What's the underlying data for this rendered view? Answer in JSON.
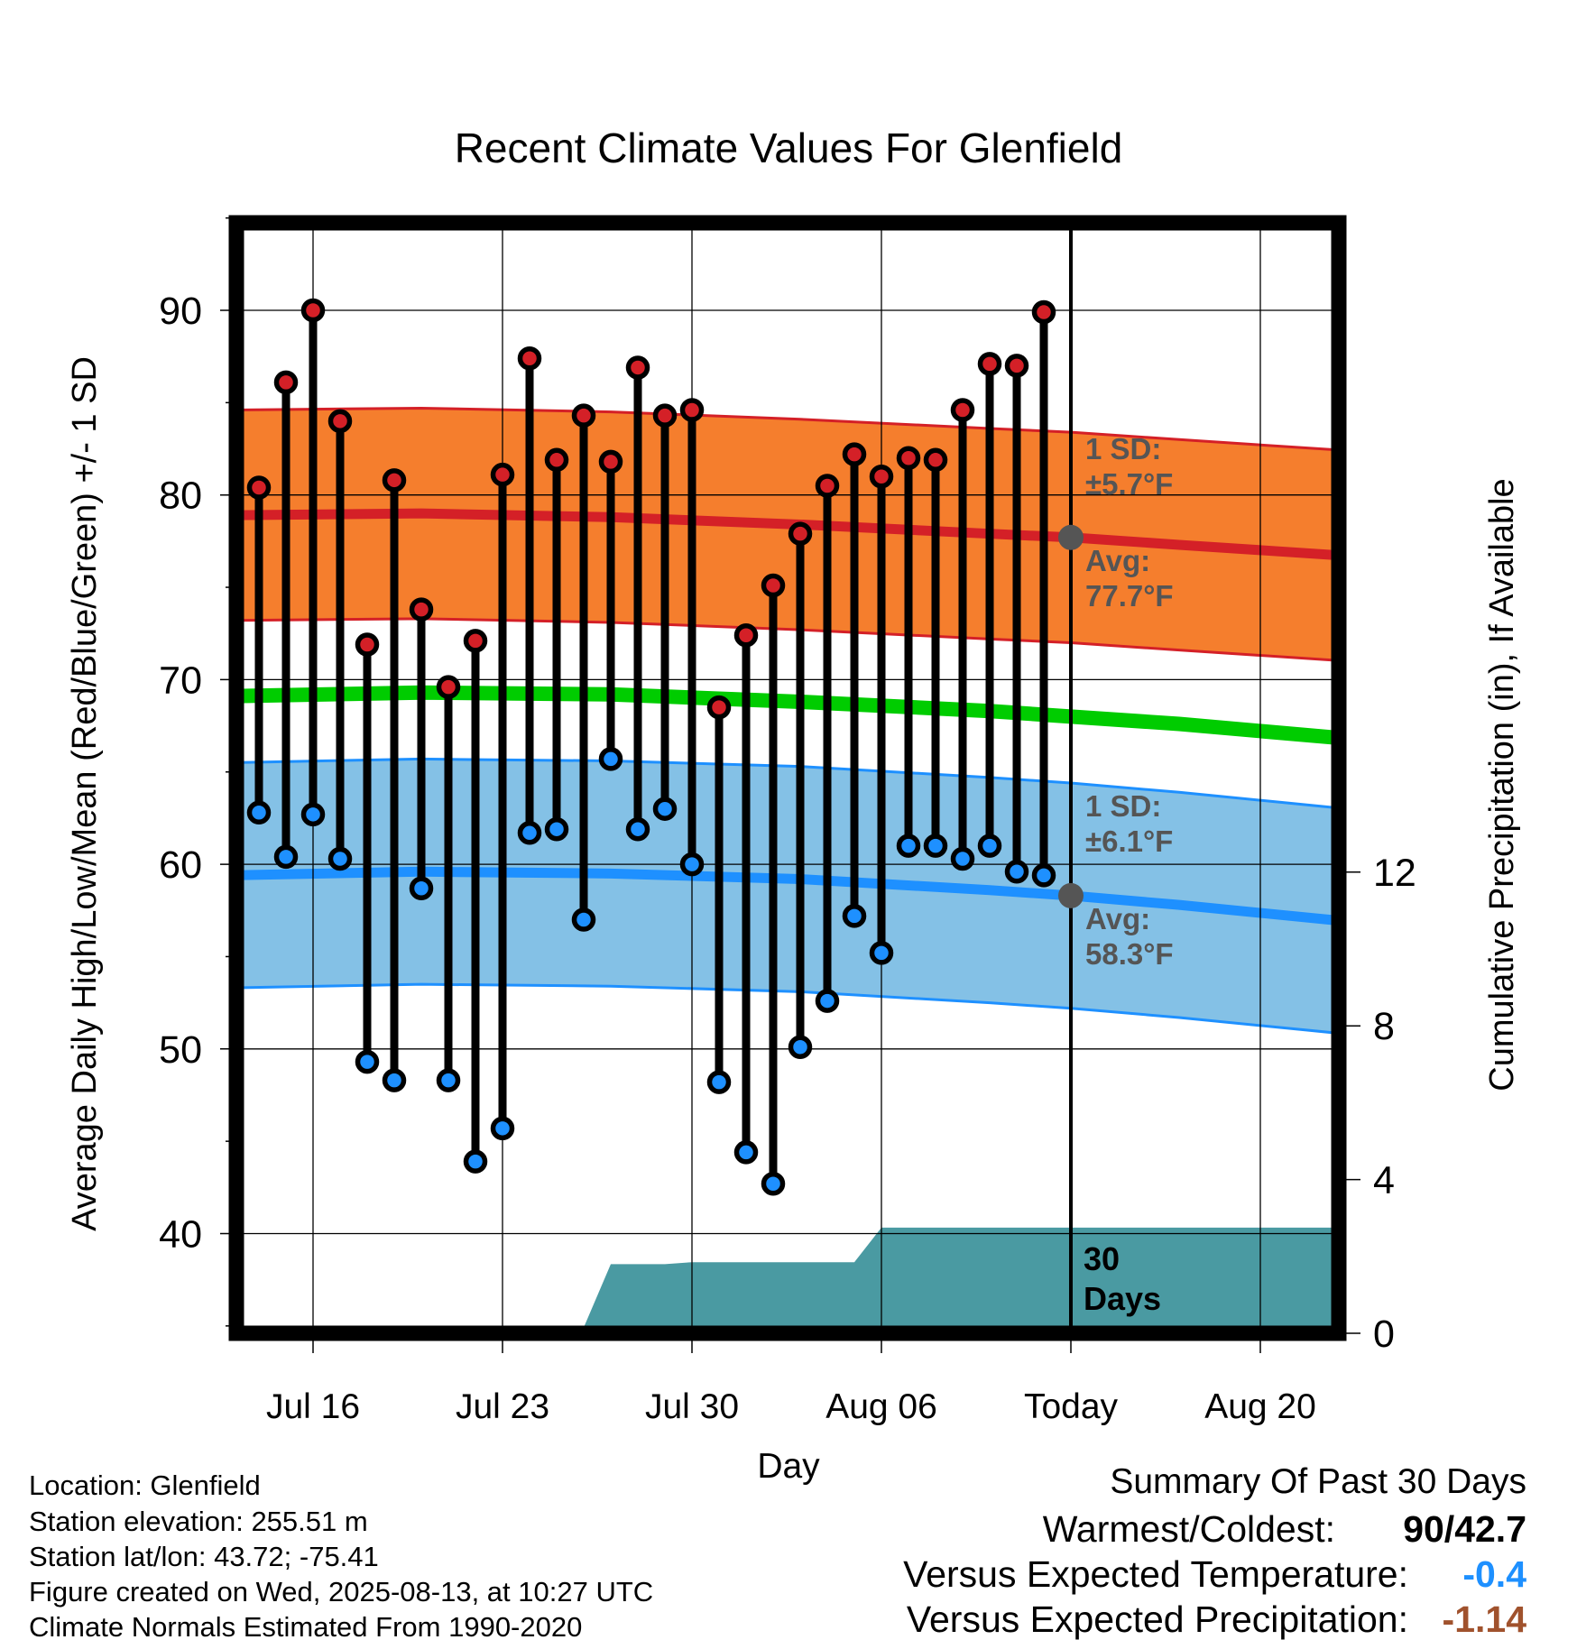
{
  "chart_data": {
    "type": "line",
    "title": "Recent Climate Values For Glenfield",
    "xlabel": "Day",
    "ylabel_left": "Average Daily High/Low/Mean (Red/Blue/Green) +/- 1 SD",
    "ylabel_right": "Cumulative Precipitation (in), If Available",
    "ylim_left": [
      35,
      95
    ],
    "ylim_right": [
      0,
      28.7
    ],
    "left_ticks": [
      "40",
      "50",
      "60",
      "70",
      "80",
      "90"
    ],
    "right_ticks": [
      "0",
      "4",
      "8",
      "12"
    ],
    "x_ticks": [
      "Jul 16",
      "Jul 23",
      "Jul 30",
      "Aug 06",
      "Today",
      "Aug 20"
    ],
    "today_marker": "Today",
    "grid": true,
    "high_series": {
      "name": "Daily High",
      "color": "#d42027",
      "dates": [
        "2025-07-14",
        "2025-07-15",
        "2025-07-16",
        "2025-07-17",
        "2025-07-18",
        "2025-07-19",
        "2025-07-20",
        "2025-07-21",
        "2025-07-22",
        "2025-07-23",
        "2025-07-24",
        "2025-07-25",
        "2025-07-26",
        "2025-07-27",
        "2025-07-28",
        "2025-07-29",
        "2025-07-30",
        "2025-07-31",
        "2025-08-01",
        "2025-08-02",
        "2025-08-03",
        "2025-08-04",
        "2025-08-05",
        "2025-08-06",
        "2025-08-07",
        "2025-08-08",
        "2025-08-09",
        "2025-08-10",
        "2025-08-11",
        "2025-08-12"
      ],
      "values": [
        80.4,
        86.1,
        90.0,
        84.0,
        71.9,
        80.8,
        73.8,
        69.6,
        72.1,
        81.1,
        87.4,
        81.9,
        84.3,
        81.8,
        86.9,
        84.3,
        84.6,
        68.5,
        72.4,
        75.1,
        77.9,
        80.5,
        82.2,
        81.0,
        82.0,
        81.9,
        84.6,
        87.1,
        87.0,
        89.9
      ]
    },
    "low_series": {
      "name": "Daily Low",
      "color": "#1e90ff",
      "values": [
        62.8,
        60.4,
        62.7,
        60.3,
        49.3,
        48.3,
        58.7,
        48.3,
        43.9,
        45.7,
        61.7,
        61.9,
        57.0,
        65.7,
        61.9,
        63.0,
        60.0,
        48.2,
        44.4,
        42.7,
        50.1,
        52.6,
        57.2,
        55.2,
        61.0,
        61.0,
        60.3,
        61.0,
        59.6,
        59.4
      ]
    },
    "normal_high": {
      "dates": [
        "2025-07-13",
        "2025-07-20",
        "2025-07-27",
        "2025-08-03",
        "2025-08-10",
        "2025-08-13",
        "2025-08-17",
        "2025-08-22"
      ],
      "avg": [
        78.9,
        79.0,
        78.8,
        78.4,
        77.9,
        77.7,
        77.3,
        76.7
      ],
      "sd": 5.7,
      "band_color": "#f57e2d",
      "line_color": "#d42027"
    },
    "normal_low": {
      "dates": [
        "2025-07-13",
        "2025-07-20",
        "2025-07-27",
        "2025-08-03",
        "2025-08-10",
        "2025-08-13",
        "2025-08-17",
        "2025-08-22"
      ],
      "avg": [
        59.4,
        59.6,
        59.5,
        59.2,
        58.6,
        58.3,
        57.8,
        56.9
      ],
      "sd": 6.1,
      "band_color": "#84c1e6",
      "line_color": "#1e90ff"
    },
    "normal_mean": {
      "dates": [
        "2025-07-13",
        "2025-07-20",
        "2025-07-27",
        "2025-08-03",
        "2025-08-10",
        "2025-08-13",
        "2025-08-17",
        "2025-08-22"
      ],
      "avg": [
        69.1,
        69.3,
        69.2,
        68.8,
        68.3,
        68.0,
        67.6,
        66.8
      ],
      "color": "#00cc00"
    },
    "precipitation": {
      "color": "#4a9aa2",
      "dates": [
        "2025-07-13",
        "2025-07-14",
        "2025-07-15",
        "2025-07-16",
        "2025-07-17",
        "2025-07-18",
        "2025-07-19",
        "2025-07-20",
        "2025-07-21",
        "2025-07-22",
        "2025-07-23",
        "2025-07-24",
        "2025-07-25",
        "2025-07-26",
        "2025-07-27",
        "2025-07-28",
        "2025-07-29",
        "2025-07-30",
        "2025-07-31",
        "2025-08-01",
        "2025-08-02",
        "2025-08-03",
        "2025-08-04",
        "2025-08-05",
        "2025-08-06",
        "2025-08-07",
        "2025-08-08",
        "2025-08-09",
        "2025-08-10",
        "2025-08-11",
        "2025-08-12",
        "2025-08-13",
        "2025-08-22"
      ],
      "values": [
        0,
        0,
        0,
        0,
        0,
        0.1,
        0.1,
        0.15,
        0.15,
        0.15,
        0.15,
        0.15,
        0.15,
        0.15,
        1.8,
        1.8,
        1.8,
        1.85,
        1.85,
        1.85,
        1.85,
        1.85,
        1.85,
        1.85,
        2.75,
        2.75,
        2.75,
        2.75,
        2.75,
        2.75,
        2.75,
        2.75,
        2.75
      ]
    },
    "annotations": {
      "high_sd_label": "1 SD:",
      "high_sd_value": "±5.7°F",
      "high_avg_label": "Avg:",
      "high_avg_value": "77.7°F",
      "low_sd_label": "1 SD:",
      "low_sd_value": "±6.1°F",
      "low_avg_label": "Avg:",
      "low_avg_value": "58.3°F",
      "days_line1": "30",
      "days_line2": "Days"
    }
  },
  "footer": {
    "location": "Location: Glenfield",
    "elevation": "Station elevation: 255.51 m",
    "latlon": "Station lat/lon: 43.72; -75.41",
    "created": "Figure created on Wed, 2025-08-13, at 10:27 UTC",
    "normals": "Climate Normals Estimated From 1990-2020"
  },
  "summary": {
    "title": "Summary Of Past 30 Days",
    "warmest_label": "Warmest/Coldest:",
    "warmest_value": "90/42.7",
    "temp_label": "Versus Expected Temperature:",
    "temp_value": "-0.4",
    "temp_color": "#1e90ff",
    "precip_label": "Versus Expected Precipitation:",
    "precip_value": "-1.14",
    "precip_color": "#a0522d"
  }
}
